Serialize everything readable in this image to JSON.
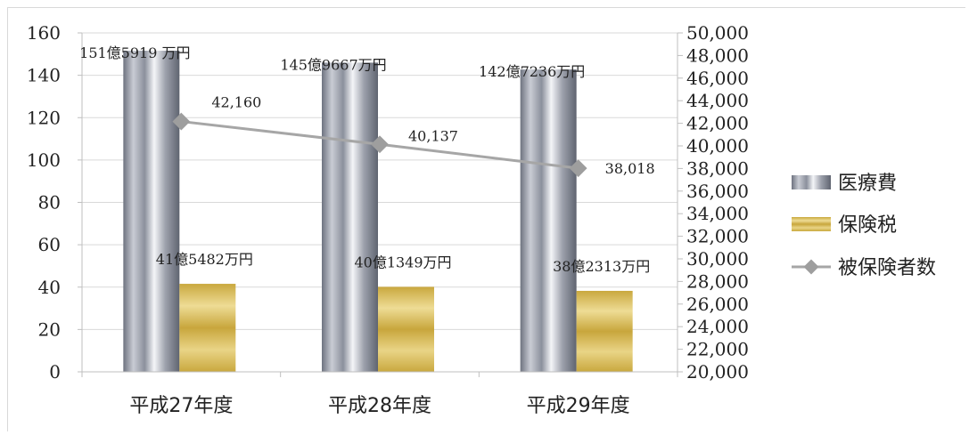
{
  "chart_data": {
    "type": "bar",
    "categories": [
      "平成27年度",
      "平成28年度",
      "平成29年度"
    ],
    "series": [
      {
        "name": "医療費",
        "axis": "left",
        "values": [
          151.59,
          145.97,
          142.72
        ],
        "labels": [
          "151億5919 万円",
          "145億9667万円",
          "142億7236万円"
        ],
        "color": "#a9adb8"
      },
      {
        "name": "保険税",
        "axis": "left",
        "values": [
          41.55,
          40.13,
          38.23
        ],
        "labels": [
          "41億5482万円",
          "40億1349万円",
          "38億2313万円"
        ],
        "color": "#d8bd5e"
      },
      {
        "name": "被保険者数",
        "axis": "right",
        "type": "line",
        "values": [
          42160,
          40137,
          38018
        ],
        "labels": [
          "42,160",
          "40,137",
          "38,018"
        ],
        "color": "#a6a6a6"
      }
    ],
    "left_axis": {
      "ylim": [
        0,
        160
      ],
      "ticks": [
        0,
        20,
        40,
        60,
        80,
        100,
        120,
        140,
        160
      ],
      "tick_labels": [
        "0",
        "20",
        "40",
        "60",
        "80",
        "100",
        "120",
        "140",
        "160"
      ]
    },
    "right_axis": {
      "ylim": [
        20000,
        50000
      ],
      "ticks": [
        20000,
        22000,
        24000,
        26000,
        28000,
        30000,
        32000,
        34000,
        36000,
        38000,
        40000,
        42000,
        44000,
        46000,
        48000,
        50000
      ],
      "tick_labels": [
        "20,000",
        "22,000",
        "24,000",
        "26,000",
        "28,000",
        "30,000",
        "32,000",
        "34,000",
        "36,000",
        "38,000",
        "40,000",
        "42,000",
        "44,000",
        "46,000",
        "48,000",
        "50,000"
      ]
    },
    "grid": true,
    "legend": "right"
  }
}
